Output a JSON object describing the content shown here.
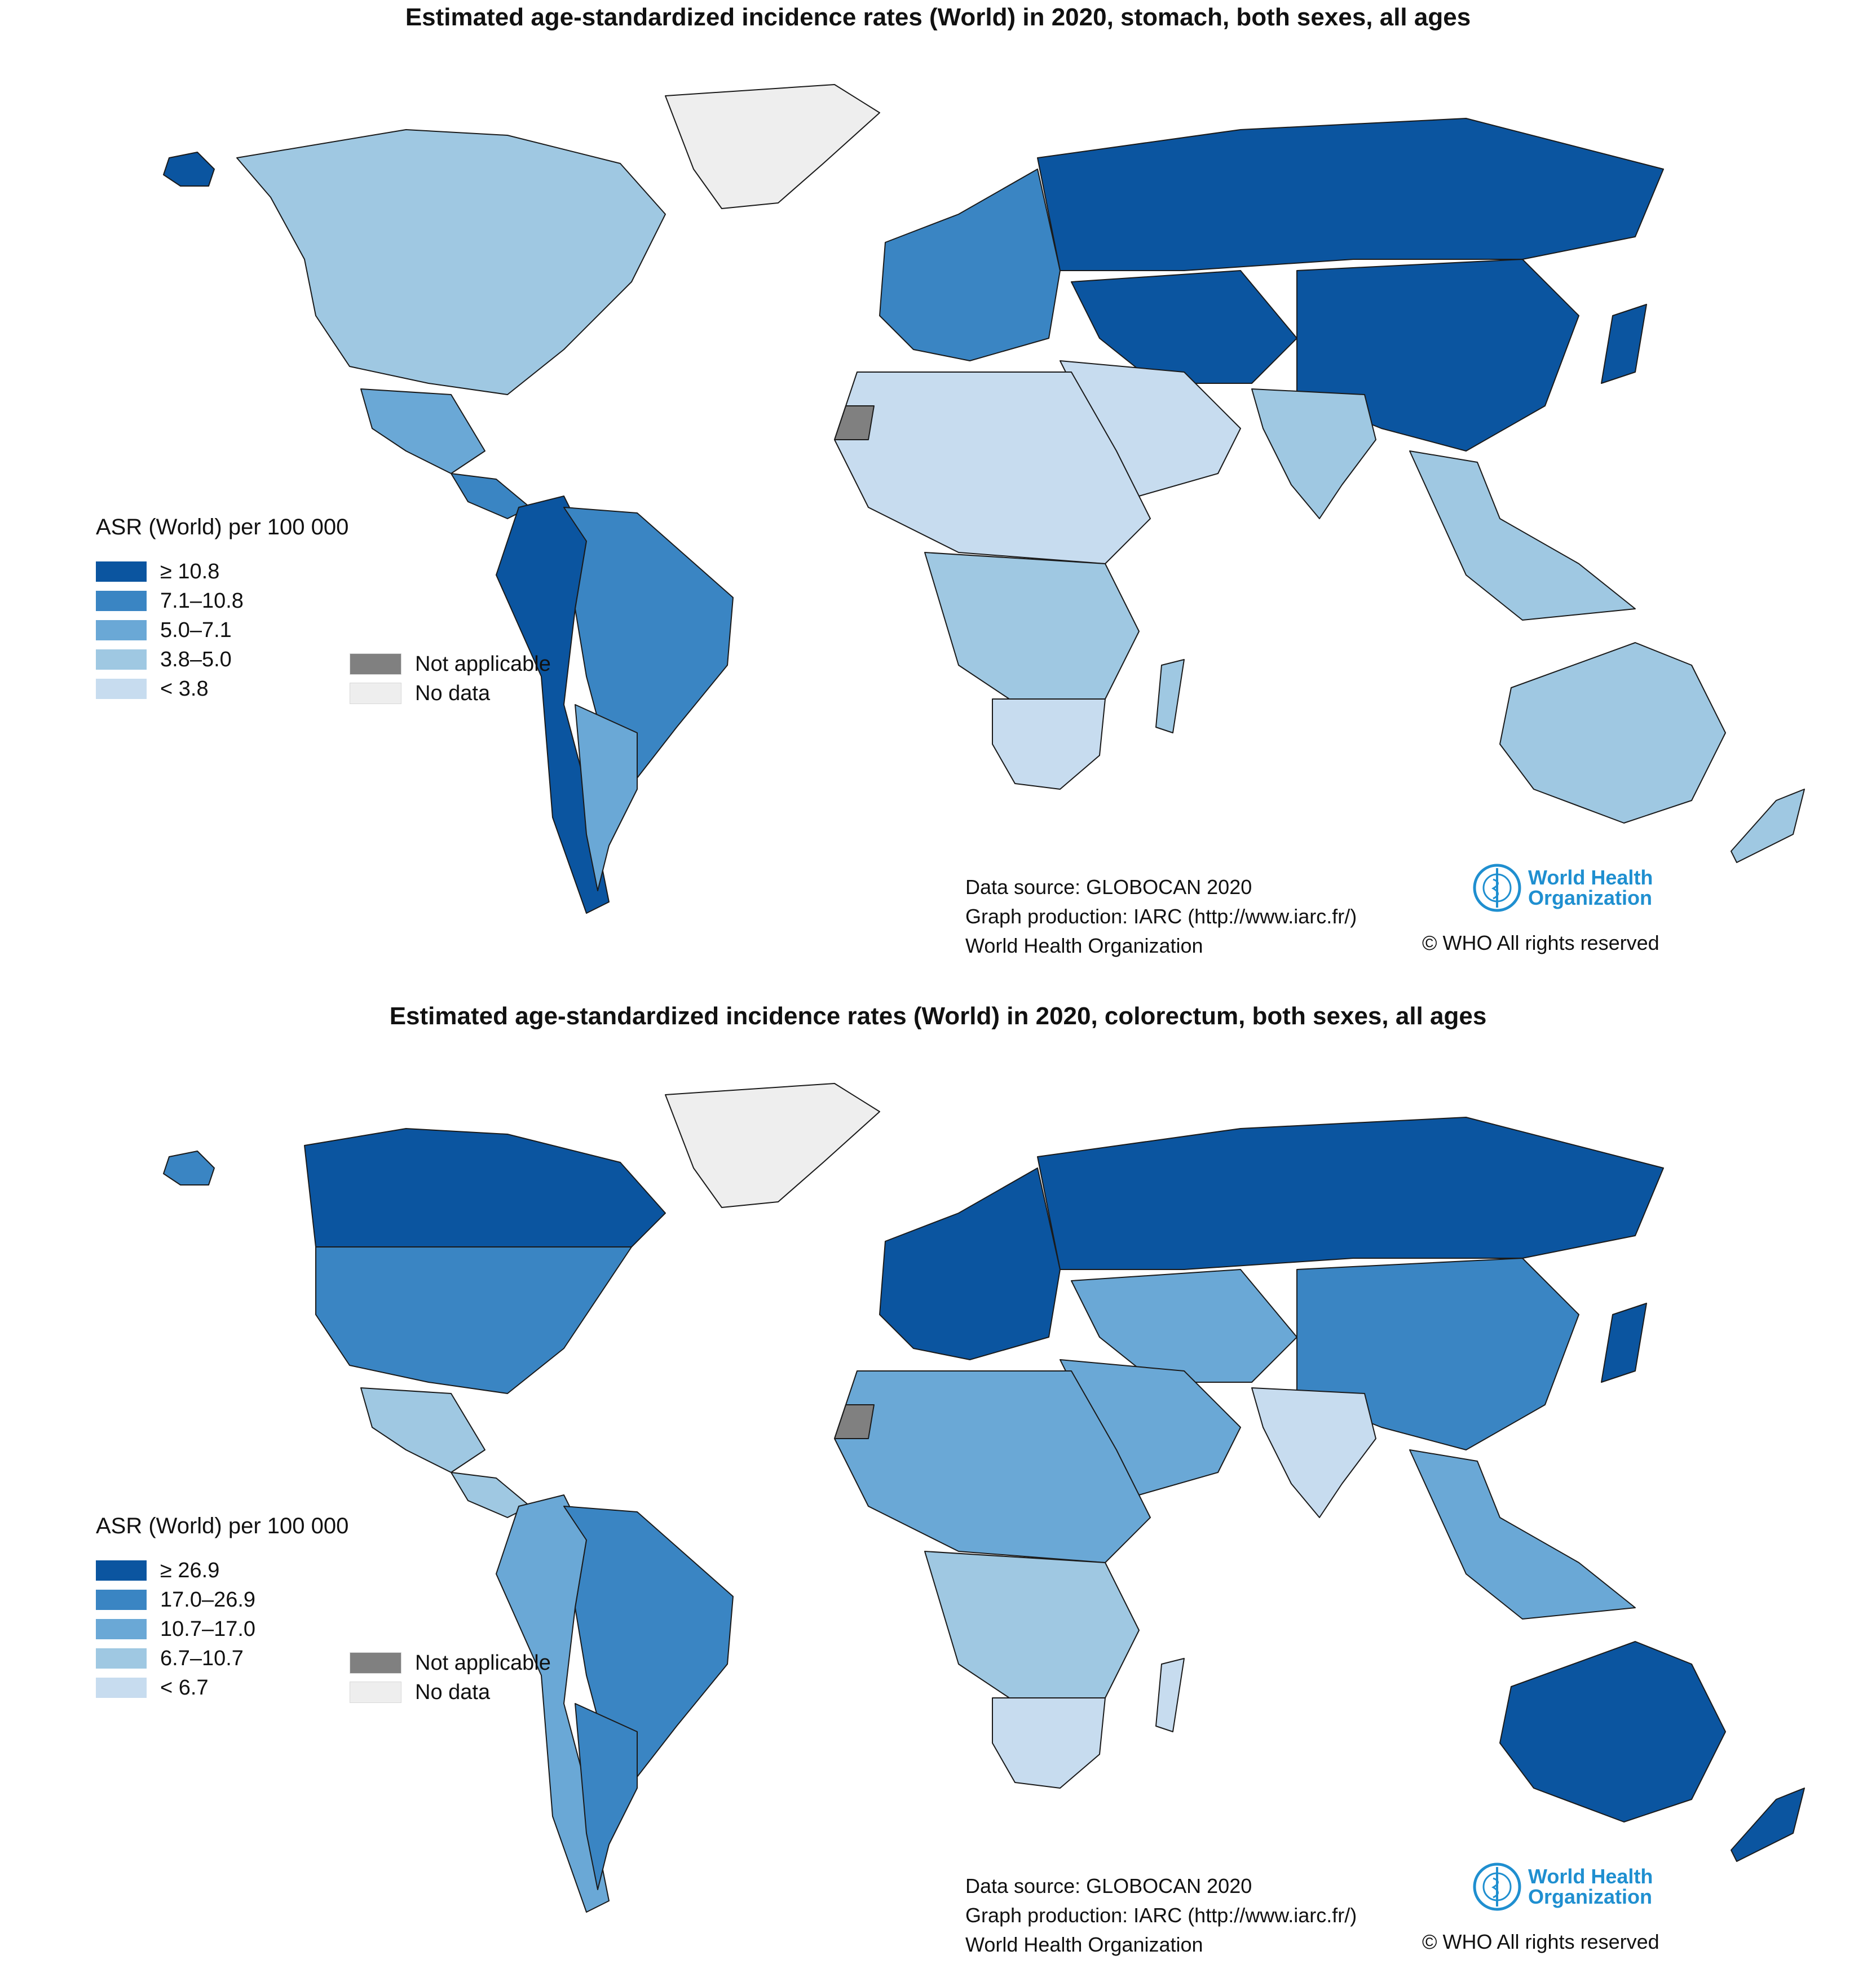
{
  "maps": [
    {
      "title": "Estimated age-standardized incidence rates (World) in 2020, stomach, both sexes, all ages",
      "legend_title": "ASR (World) per 100 000",
      "legend_items": [
        {
          "label": "≥ 10.8",
          "color": "#0b55a0"
        },
        {
          "label": "7.1–10.8",
          "color": "#3a85c3"
        },
        {
          "label": "5.0–7.1",
          "color": "#6aa8d6"
        },
        {
          "label": "3.8–5.0",
          "color": "#9fc8e2"
        },
        {
          "label": "< 3.8",
          "color": "#c7dcef"
        }
      ],
      "extra_legend": [
        {
          "label": "Not applicable",
          "color": "#808080"
        },
        {
          "label": "No data",
          "color": "#eeeeee"
        }
      ],
      "regions": {
        "north_america": "#9fc8e2",
        "greenland": "#eeeeee",
        "alaska": "#0b55a0",
        "mexico": "#6aa8d6",
        "central_america": "#3a85c3",
        "south_america": "#3a85c3",
        "andes": "#0b55a0",
        "argentina": "#6aa8d6",
        "europe": "#3a85c3",
        "russia": "#0b55a0",
        "central_asia": "#0b55a0",
        "east_asia": "#0b55a0",
        "middle_east": "#c7dcef",
        "india": "#9fc8e2",
        "southeast_asia": "#9fc8e2",
        "africa_north": "#c7dcef",
        "africa_central": "#9fc8e2",
        "africa_south": "#c7dcef",
        "australia": "#9fc8e2",
        "new_zealand": "#9fc8e2",
        "japan": "#0b55a0",
        "madagascar": "#9fc8e2",
        "western_sahara": "#808080"
      },
      "credits": [
        "Data source: GLOBOCAN 2020",
        "Graph production: IARC (http://www.iarc.fr/)",
        "World Health Organization"
      ],
      "who_logo_lines": [
        "World Health",
        "Organization"
      ],
      "rights": "© WHO All rights reserved"
    },
    {
      "title": "Estimated age-standardized incidence rates (World) in 2020, colorectum, both sexes, all ages",
      "legend_title": "ASR (World) per 100 000",
      "legend_items": [
        {
          "label": "≥ 26.9",
          "color": "#0b55a0"
        },
        {
          "label": "17.0–26.9",
          "color": "#3a85c3"
        },
        {
          "label": "10.7–17.0",
          "color": "#6aa8d6"
        },
        {
          "label": "6.7–10.7",
          "color": "#9fc8e2"
        },
        {
          "label": "< 6.7",
          "color": "#c7dcef"
        }
      ],
      "extra_legend": [
        {
          "label": "Not applicable",
          "color": "#808080"
        },
        {
          "label": "No data",
          "color": "#eeeeee"
        }
      ],
      "regions": {
        "north_america": "#3a85c3",
        "greenland": "#eeeeee",
        "alaska": "#3a85c3",
        "canada": "#0b55a0",
        "mexico": "#9fc8e2",
        "central_america": "#9fc8e2",
        "south_america": "#3a85c3",
        "andes": "#6aa8d6",
        "argentina": "#3a85c3",
        "europe": "#0b55a0",
        "russia": "#0b55a0",
        "central_asia": "#6aa8d6",
        "east_asia": "#3a85c3",
        "middle_east": "#6aa8d6",
        "india": "#c7dcef",
        "southeast_asia": "#6aa8d6",
        "africa_north": "#6aa8d6",
        "africa_central": "#9fc8e2",
        "africa_south": "#c7dcef",
        "australia": "#0b55a0",
        "new_zealand": "#0b55a0",
        "japan": "#0b55a0",
        "madagascar": "#c7dcef",
        "western_sahara": "#808080"
      },
      "credits": [
        "Data source: GLOBOCAN 2020",
        "Graph production: IARC (http://www.iarc.fr/)",
        "World Health Organization"
      ],
      "who_logo_lines": [
        "World Health",
        "Organization"
      ],
      "rights": "© WHO All rights reserved"
    }
  ]
}
